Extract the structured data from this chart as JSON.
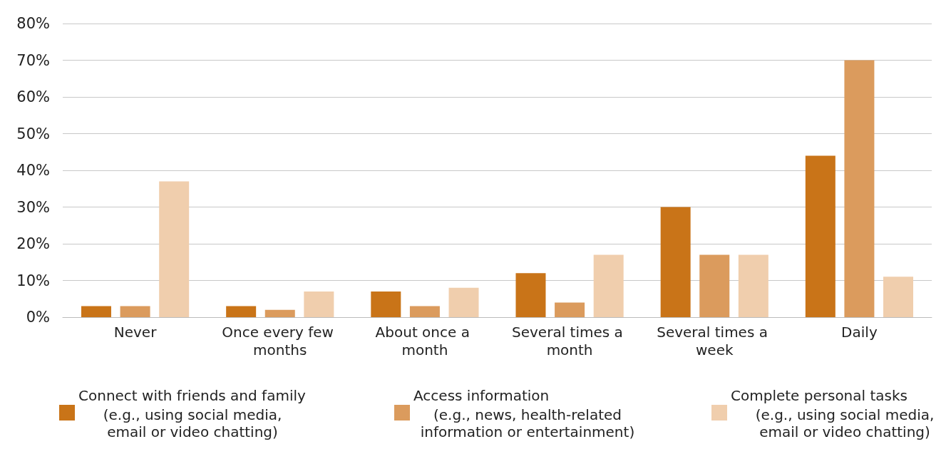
{
  "chart_data": {
    "type": "bar",
    "categories": [
      "Never",
      "Once every few months",
      "About once a month",
      "Several times a month",
      "Several times a week",
      "Daily"
    ],
    "series": [
      {
        "name": "Connect with friends and family (e.g., using social media, email or video chatting)",
        "color": "#c97418",
        "values": [
          3,
          3,
          7,
          12,
          30,
          44
        ]
      },
      {
        "name": "Access information (e.g., news, health-related information or entertainment)",
        "color": "#db9b5d",
        "values": [
          3,
          2,
          3,
          4,
          17,
          70
        ]
      },
      {
        "name": "Complete personal tasks (e.g., using social media, email or video chatting)",
        "color": "#f0cead",
        "values": [
          37,
          7,
          8,
          17,
          17,
          11
        ]
      }
    ],
    "ylim": [
      0,
      80
    ],
    "yticks": [
      {
        "value": 0,
        "label": "0%"
      },
      {
        "value": 10,
        "label": "10%"
      },
      {
        "value": 20,
        "label": "20%"
      },
      {
        "value": 30,
        "label": "30%"
      },
      {
        "value": 40,
        "label": "40%"
      },
      {
        "value": 50,
        "label": "50%"
      },
      {
        "value": 60,
        "label": "60%"
      },
      {
        "value": 70,
        "label": "70%"
      },
      {
        "value": 80,
        "label": "80%"
      }
    ],
    "grid": "y",
    "legend": "bottom"
  }
}
